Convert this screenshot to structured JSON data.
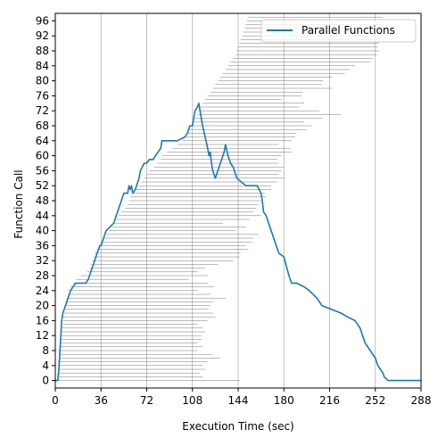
{
  "chart_data": {
    "type": "line",
    "title": "",
    "xlabel": "Execution Time (sec)",
    "ylabel": "Function Call",
    "xlim": [
      0,
      288
    ],
    "ylim": [
      -2,
      98
    ],
    "xticks": [
      0,
      36,
      72,
      108,
      144,
      180,
      216,
      252,
      288
    ],
    "yticks": [
      0,
      4,
      8,
      12,
      16,
      20,
      24,
      28,
      32,
      36,
      40,
      44,
      48,
      52,
      56,
      60,
      64,
      68,
      72,
      76,
      80,
      84,
      88,
      92,
      96
    ],
    "grid": "vertical",
    "legend": {
      "position": "top-right",
      "entries": [
        "Parallel Functions"
      ]
    },
    "colors": {
      "series": "#1f77b4",
      "intervals": "#777777",
      "grid": "#b0b0b0"
    },
    "series": [
      {
        "name": "Parallel Functions",
        "x": [
          0,
          2,
          3,
          4,
          5,
          6,
          8,
          10,
          12,
          14,
          16,
          20,
          24,
          26,
          27,
          28,
          30,
          31,
          33,
          35,
          36,
          38,
          40,
          46,
          48,
          50,
          52,
          54,
          57,
          58,
          59,
          60,
          61,
          63,
          64,
          66,
          67,
          70,
          72,
          74,
          77,
          79,
          83,
          84,
          90,
          96,
          102,
          104,
          106,
          108,
          109,
          110,
          112,
          113,
          114,
          115,
          116,
          118,
          120,
          121,
          122,
          123,
          124,
          125,
          126,
          127,
          128,
          130,
          132,
          133,
          134,
          136,
          138,
          140,
          143,
          150,
          159,
          162,
          163,
          164,
          166,
          168,
          170,
          172,
          174,
          175,
          176,
          180,
          184,
          186,
          190,
          196,
          200,
          206,
          210,
          225,
          230,
          236,
          240,
          242,
          244,
          248,
          250,
          252,
          254,
          256,
          258,
          259,
          262,
          288
        ],
        "y": [
          0,
          0,
          4,
          10,
          16,
          18,
          20,
          22,
          24,
          25,
          26,
          26,
          26,
          27,
          28,
          29,
          31,
          32,
          34,
          36,
          36,
          38,
          40,
          42,
          44,
          46,
          48,
          50,
          50,
          52,
          51,
          52,
          50,
          51,
          52,
          54,
          56,
          58,
          58,
          59,
          59,
          60,
          62,
          64,
          64,
          64,
          65,
          66,
          68,
          68,
          70,
          72,
          73,
          74,
          72,
          70,
          68,
          65,
          62,
          60,
          61,
          58,
          56,
          55,
          54,
          55,
          56,
          58,
          60,
          61,
          63,
          60,
          58,
          57,
          54,
          52,
          52,
          50,
          48,
          45,
          44,
          42,
          40,
          38,
          36,
          35,
          34,
          33,
          28,
          26,
          26,
          25,
          24,
          22,
          20,
          18,
          17,
          16,
          14,
          12,
          10,
          8,
          7,
          6,
          4,
          3,
          2,
          1,
          0,
          0
        ]
      }
    ],
    "intervals": [
      [
        2,
        145
      ],
      [
        2,
        116
      ],
      [
        2,
        114
      ],
      [
        2,
        118
      ],
      [
        2,
        116
      ],
      [
        2,
        120
      ],
      [
        3,
        130
      ],
      [
        3,
        124
      ],
      [
        4,
        112
      ],
      [
        4,
        116
      ],
      [
        4,
        112
      ],
      [
        4,
        115
      ],
      [
        5,
        115
      ],
      [
        5,
        118
      ],
      [
        5,
        116
      ],
      [
        6,
        112
      ],
      [
        6,
        120
      ],
      [
        6,
        126
      ],
      [
        7,
        124
      ],
      [
        8,
        120
      ],
      [
        8,
        122
      ],
      [
        8,
        124
      ],
      [
        9,
        134
      ],
      [
        10,
        122
      ],
      [
        10,
        112
      ],
      [
        12,
        125
      ],
      [
        14,
        120
      ],
      [
        16,
        105
      ],
      [
        20,
        120
      ],
      [
        25,
        112
      ],
      [
        27,
        118
      ],
      [
        28,
        128
      ],
      [
        29,
        140
      ],
      [
        30,
        145
      ],
      [
        31,
        146
      ],
      [
        33,
        152
      ],
      [
        35,
        150
      ],
      [
        36,
        155
      ],
      [
        38,
        156
      ],
      [
        40,
        160
      ],
      [
        42,
        142
      ],
      [
        44,
        150
      ],
      [
        46,
        132
      ],
      [
        48,
        153
      ],
      [
        50,
        162
      ],
      [
        52,
        156
      ],
      [
        55,
        158
      ],
      [
        57,
        160
      ],
      [
        58,
        163
      ],
      [
        59,
        166
      ],
      [
        61,
        165
      ],
      [
        63,
        170
      ],
      [
        66,
        170
      ],
      [
        68,
        175
      ],
      [
        70,
        180
      ],
      [
        72,
        176
      ],
      [
        74,
        178
      ],
      [
        78,
        180
      ],
      [
        80,
        176
      ],
      [
        83,
        175
      ],
      [
        84,
        178
      ],
      [
        88,
        186
      ],
      [
        92,
        185
      ],
      [
        96,
        176
      ],
      [
        100,
        186
      ],
      [
        102,
        189
      ],
      [
        104,
        190
      ],
      [
        106,
        198
      ],
      [
        108,
        202
      ],
      [
        109,
        196
      ],
      [
        110,
        210
      ],
      [
        112,
        225
      ],
      [
        113,
        208
      ],
      [
        114,
        192
      ],
      [
        116,
        196
      ],
      [
        118,
        178
      ],
      [
        120,
        194
      ],
      [
        122,
        195
      ],
      [
        124,
        218
      ],
      [
        126,
        210
      ],
      [
        128,
        211
      ],
      [
        130,
        218
      ],
      [
        132,
        228
      ],
      [
        134,
        232
      ],
      [
        136,
        236
      ],
      [
        138,
        248
      ],
      [
        140,
        250
      ],
      [
        142,
        253
      ],
      [
        143,
        255
      ],
      [
        144,
        254
      ],
      [
        145,
        255
      ],
      [
        146,
        252
      ],
      [
        147,
        252
      ],
      [
        148,
        250
      ],
      [
        149,
        240
      ],
      [
        150,
        256
      ],
      [
        151,
        240
      ],
      [
        152,
        258
      ],
      [
        153,
        257
      ]
    ]
  }
}
